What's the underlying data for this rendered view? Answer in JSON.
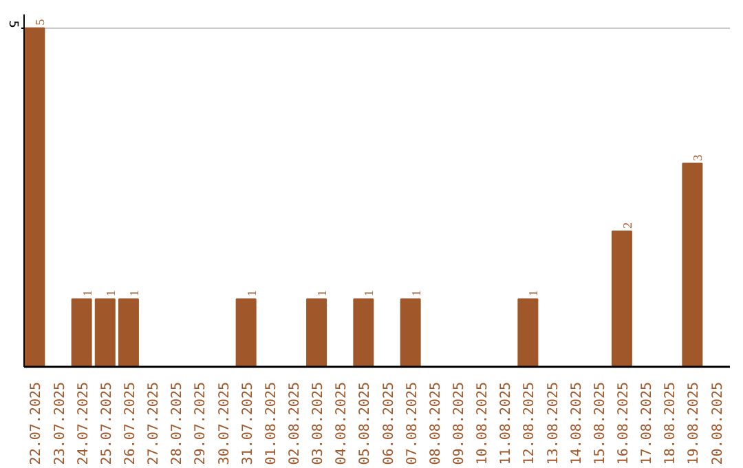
{
  "chart_data": {
    "type": "bar",
    "categories": [
      "22.07.2025",
      "23.07.2025",
      "24.07.2025",
      "25.07.2025",
      "26.07.2025",
      "27.07.2025",
      "28.07.2025",
      "29.07.2025",
      "30.07.2025",
      "31.07.2025",
      "01.08.2025",
      "02.08.2025",
      "03.08.2025",
      "04.08.2025",
      "05.08.2025",
      "06.08.2025",
      "07.08.2025",
      "08.08.2025",
      "09.08.2025",
      "10.08.2025",
      "11.08.2025",
      "12.08.2025",
      "13.08.2025",
      "14.08.2025",
      "15.08.2025",
      "16.08.2025",
      "17.08.2025",
      "18.08.2025",
      "19.08.2025",
      "20.08.2025"
    ],
    "values": [
      5,
      null,
      1,
      1,
      1,
      null,
      null,
      null,
      null,
      1,
      null,
      null,
      1,
      null,
      1,
      null,
      1,
      null,
      null,
      null,
      null,
      1,
      null,
      null,
      null,
      2,
      null,
      null,
      3,
      null
    ],
    "color": "#a0572a",
    "ylim": [
      0,
      5.2
    ],
    "yticks": [
      5
    ],
    "grid": "y",
    "data_labels": true
  }
}
